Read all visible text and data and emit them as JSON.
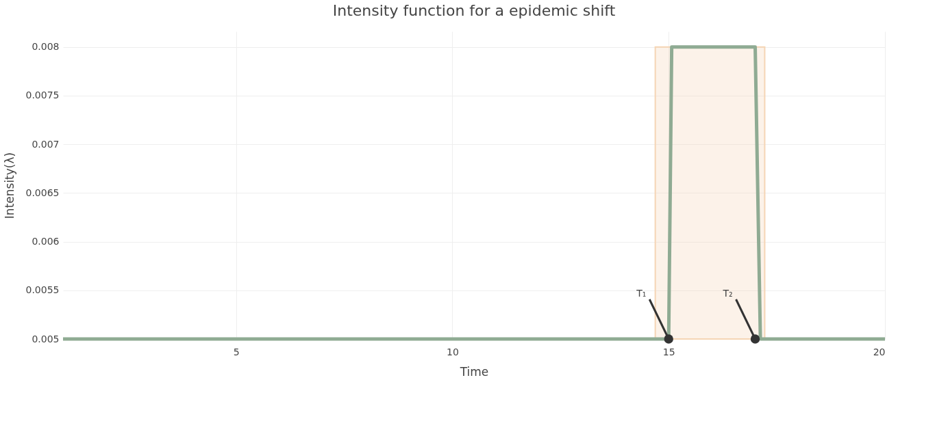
{
  "chart_data": {
    "type": "line",
    "title": "Intensity function for a epidemic shift",
    "xlabel": "Time",
    "ylabel": "Intensity(λ)",
    "series": [
      {
        "color": "#8fab93",
        "x": [
          1,
          15,
          15.07,
          17,
          17.12,
          20
        ],
        "values": [
          0.005,
          0.005,
          0.008,
          0.008,
          0.005,
          0.005
        ]
      }
    ],
    "xlim": [
      1,
      20
    ],
    "xticks": [
      5,
      10,
      15,
      20
    ],
    "ylim": [
      0.005,
      0.00816
    ],
    "yticks": [
      0.005,
      0.0055,
      0.006,
      0.0065,
      0.007,
      0.0075,
      0.008
    ],
    "bands": [
      {
        "axis": "x",
        "from": 14.69,
        "to": 17.22,
        "color": "#f5d5b5"
      }
    ],
    "annotations": [
      {
        "text": "T₁",
        "x": 15,
        "y": 0.005
      },
      {
        "text": "T₂",
        "x": 17,
        "y": 0.005
      }
    ],
    "grid": true,
    "marker": "none",
    "line_style": "solid"
  }
}
